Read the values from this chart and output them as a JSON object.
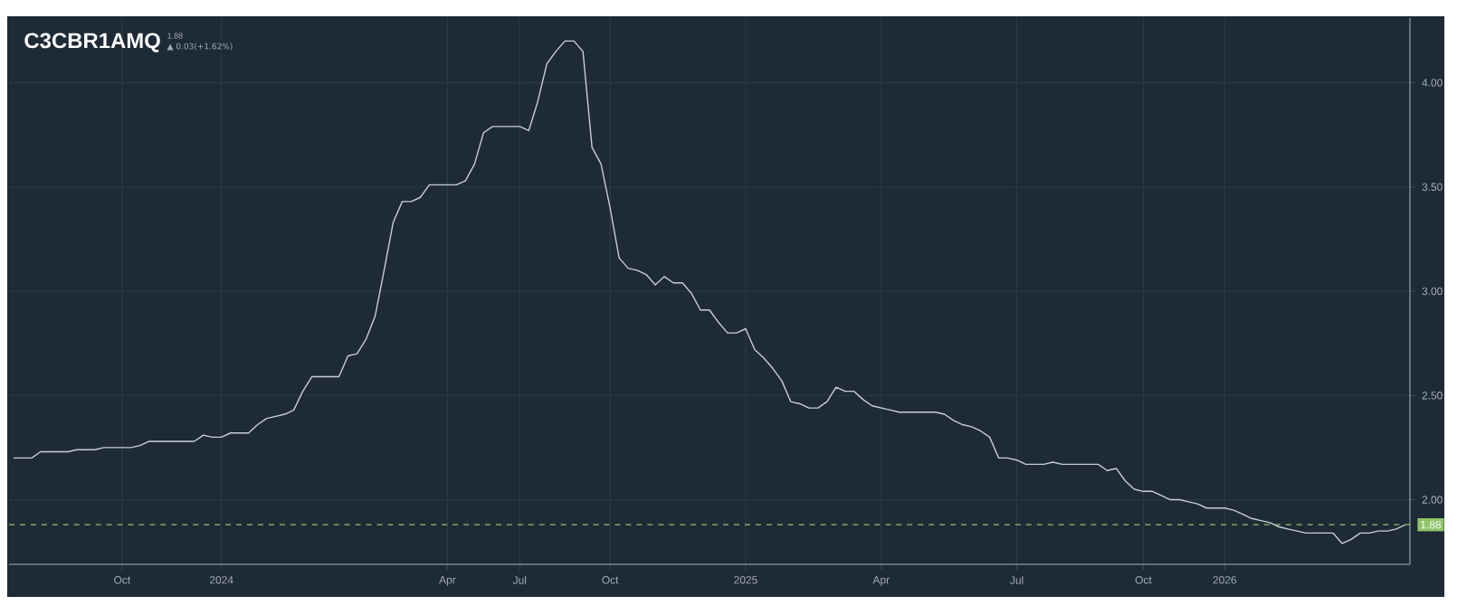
{
  "chart_data": {
    "type": "line",
    "title": "C3CBR1AMQ",
    "subtitle": "1.88",
    "annotations": [
      "▲ 0.03(+1.62%)"
    ],
    "categories": [
      null,
      null,
      null,
      null,
      null,
      null,
      null,
      null,
      null,
      null,
      null,
      null,
      "Oct",
      null,
      null,
      null,
      null,
      null,
      null,
      null,
      null,
      null,
      null,
      "2024",
      null,
      null,
      null,
      null,
      null,
      null,
      null,
      null,
      null,
      null,
      null,
      null,
      null,
      null,
      null,
      null,
      null,
      null,
      null,
      null,
      null,
      null,
      null,
      null,
      "Apr",
      null,
      null,
      null,
      null,
      null,
      null,
      null,
      "Jul",
      null,
      null,
      null,
      null,
      null,
      null,
      null,
      null,
      null,
      "Oct",
      null,
      null,
      null,
      null,
      null,
      null,
      null,
      null,
      null,
      null,
      null,
      null,
      null,
      null,
      "2025",
      null,
      null,
      null,
      null,
      null,
      null,
      null,
      null,
      null,
      null,
      null,
      null,
      null,
      null,
      "Apr",
      null,
      null,
      null,
      null,
      null,
      null,
      null,
      null,
      null,
      null,
      null,
      null,
      null,
      null,
      "Jul",
      null,
      null,
      null,
      null,
      null,
      null,
      null,
      null,
      null,
      null,
      null,
      null,
      null,
      "Oct",
      null,
      null,
      null,
      null,
      null,
      null,
      null,
      null,
      "2026",
      null,
      null,
      null,
      null,
      null,
      null,
      null,
      null,
      null,
      null,
      null,
      null,
      null,
      null,
      null,
      null,
      null,
      null,
      null,
      null
    ],
    "series": [
      {
        "color": "#c9ced3",
        "values": [
          2.2,
          2.2,
          2.2,
          2.23,
          2.23,
          2.23,
          2.23,
          2.24,
          2.24,
          2.24,
          2.25,
          2.25,
          2.25,
          2.25,
          2.26,
          2.28,
          2.28,
          2.28,
          2.28,
          2.28,
          2.28,
          2.31,
          2.3,
          2.3,
          2.32,
          2.32,
          2.32,
          2.36,
          2.39,
          2.4,
          2.41,
          2.43,
          2.52,
          2.59,
          2.59,
          2.59,
          2.59,
          2.69,
          2.7,
          2.77,
          2.88,
          3.1,
          3.33,
          3.43,
          3.43,
          3.45,
          3.51,
          3.51,
          3.51,
          3.51,
          3.53,
          3.61,
          3.76,
          3.79,
          3.79,
          3.79,
          3.79,
          3.77,
          3.91,
          4.09,
          4.15,
          4.2,
          4.2,
          4.15,
          3.69,
          3.61,
          3.4,
          3.16,
          3.11,
          3.1,
          3.08,
          3.03,
          3.07,
          3.04,
          3.04,
          2.99,
          2.91,
          2.91,
          2.85,
          2.8,
          2.8,
          2.82,
          2.72,
          2.68,
          2.63,
          2.57,
          2.47,
          2.46,
          2.44,
          2.44,
          2.47,
          2.54,
          2.52,
          2.52,
          2.48,
          2.45,
          2.44,
          2.43,
          2.42,
          2.42,
          2.42,
          2.42,
          2.42,
          2.41,
          2.38,
          2.36,
          2.35,
          2.33,
          2.3,
          2.2,
          2.2,
          2.19,
          2.17,
          2.17,
          2.17,
          2.18,
          2.17,
          2.17,
          2.17,
          2.17,
          2.17,
          2.14,
          2.15,
          2.09,
          2.05,
          2.04,
          2.04,
          2.02,
          2.0,
          2.0,
          1.99,
          1.98,
          1.96,
          1.96,
          1.96,
          1.95,
          1.93,
          1.91,
          1.9,
          1.89,
          1.87,
          1.86,
          1.85,
          1.84,
          1.84,
          1.84,
          1.84,
          1.79,
          1.81,
          1.84,
          1.84,
          1.85,
          1.85,
          1.86,
          1.88
        ]
      }
    ],
    "ylim": [
      1.69,
      4.31
    ],
    "yticks": [
      {
        "value": 2,
        "label": "2.00"
      },
      {
        "value": 2.5,
        "label": "2.50"
      },
      {
        "value": 3,
        "label": "3.00"
      },
      {
        "value": 3.5,
        "label": "3.50"
      },
      {
        "value": 4,
        "label": "4.00"
      }
    ],
    "ref_lines": [
      {
        "axis": "y",
        "value": 1.88,
        "label": "1.88",
        "color": "#8fc46a",
        "line_style": "dashed"
      }
    ],
    "grid": true,
    "marker": "none",
    "line_style": "solid"
  }
}
